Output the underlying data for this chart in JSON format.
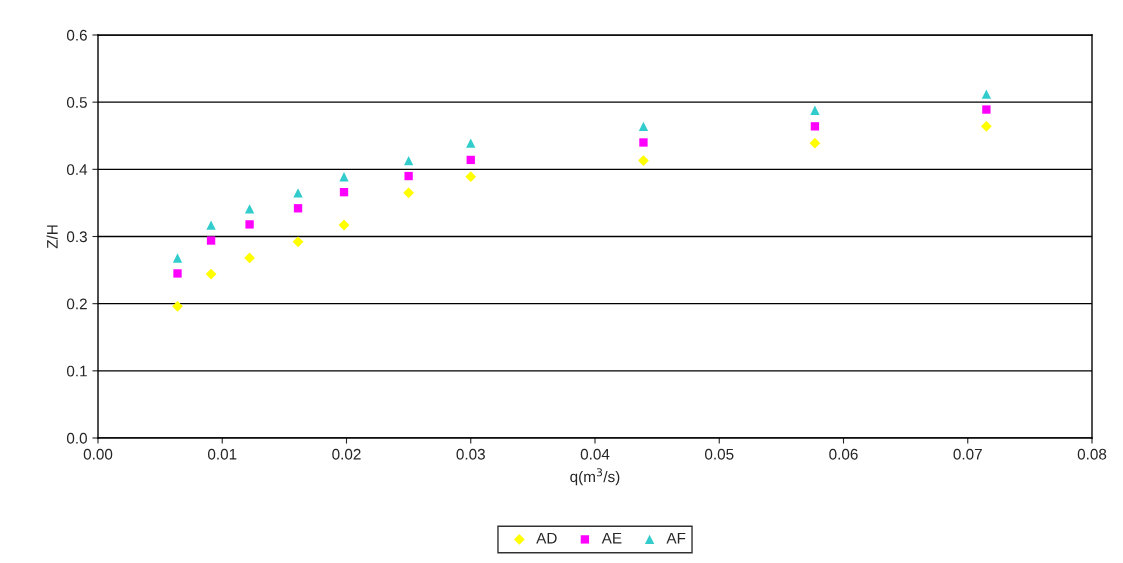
{
  "chart_data": {
    "type": "scatter",
    "xlabel": "q(m$^{3}$/s)",
    "ylabel": "Z/H",
    "x": [
      0.0064,
      0.0091,
      0.0122,
      0.0161,
      0.0198,
      0.025,
      0.03,
      0.0439,
      0.0577,
      0.0715
    ],
    "series": [
      {
        "name": "AD",
        "color": "#ffff00",
        "marker": "diamond",
        "values": [
          0.196,
          0.244,
          0.268,
          0.292,
          0.317,
          0.365,
          0.389,
          0.413,
          0.439,
          0.464
        ]
      },
      {
        "name": "AE",
        "color": "#ff00ff",
        "marker": "square",
        "values": [
          0.245,
          0.294,
          0.318,
          0.342,
          0.366,
          0.39,
          0.414,
          0.44,
          0.464,
          0.489
        ]
      },
      {
        "name": "AF",
        "color": "#33cccc",
        "marker": "triangle",
        "values": [
          0.268,
          0.317,
          0.341,
          0.365,
          0.389,
          0.413,
          0.439,
          0.464,
          0.488,
          0.512
        ]
      }
    ],
    "xlim": [
      0,
      0.08
    ],
    "xticks": [
      {
        "value": 0,
        "label": "0.00"
      },
      0.01,
      0.02,
      0.03,
      0.04,
      0.05,
      0.06,
      0.07,
      0.08
    ],
    "ylim": [
      0,
      0.6
    ],
    "yticks": [
      {
        "value": 0,
        "label": "0.0"
      },
      0.1,
      0.2,
      0.3,
      0.4,
      0.5,
      0.6
    ],
    "grid": "y",
    "legend": "bottom"
  }
}
